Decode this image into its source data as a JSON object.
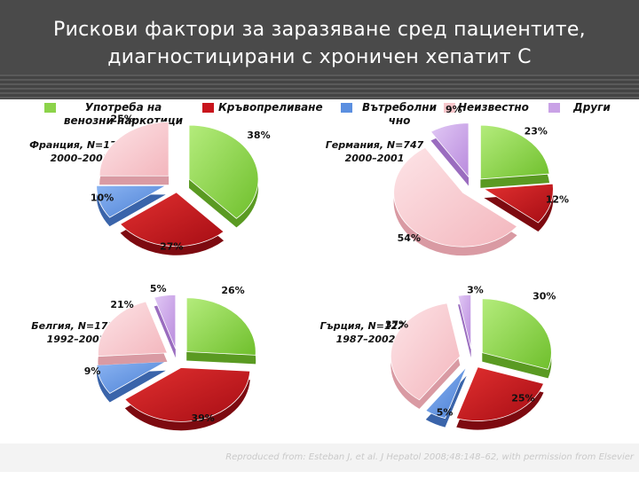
{
  "title_line1": "Рискови фактори за заразяване сред пациентите,",
  "title_line2": "диагностицирани с хроничен хепатит C",
  "legend": [
    {
      "label": "Употреба на венозни наркотици",
      "color": "#8cd34a"
    },
    {
      "label": "Кръвопреливане",
      "color": "#c8141c"
    },
    {
      "label": "Вътреболнично",
      "color": "#5b8fe0"
    },
    {
      "label": "Неизвестно",
      "color": "#f7c6cb"
    },
    {
      "label": "Други",
      "color": "#c9a2e6"
    }
  ],
  "legend_text": {
    "idu_1": "Употреба на",
    "idu_2": "венозни наркотици",
    "transfusion": "Кръвопреливане",
    "nosocomial_1": "Вътреболни",
    "nosocomial_2": "чно",
    "unknown": "Неизвестно",
    "other": "Други"
  },
  "chart_data": [
    {
      "type": "pie",
      "label_1": "Франция, N=1769",
      "label_2": "2000–2001",
      "categories": [
        "Употреба на венозни наркотици",
        "Кръвопреливане",
        "Вътреболнично",
        "Неизвестно"
      ],
      "values": [
        38,
        27,
        10,
        25
      ],
      "value_labels": [
        "38%",
        "27%",
        "10%",
        "25%"
      ]
    },
    {
      "type": "pie",
      "label_1": "Германия, N=747",
      "label_2": "2000–2001",
      "categories": [
        "Употреба на венозни наркотици",
        "Кръвопреливане",
        "Неизвестно",
        "Други"
      ],
      "values": [
        23,
        12,
        54,
        9
      ],
      "value_labels": [
        "23%",
        "12%",
        "54%",
        "9%"
      ]
    },
    {
      "type": "pie",
      "label_1": "Белгия, N=1726",
      "label_2": "1992–2002",
      "categories": [
        "Употреба на венозни наркотици",
        "Кръвопреливане",
        "Вътреболнично",
        "Неизвестно",
        "Други"
      ],
      "values": [
        26,
        39,
        9,
        21,
        5
      ],
      "value_labels": [
        "26%",
        "39%",
        "9%",
        "21%",
        "5%"
      ]
    },
    {
      "type": "pie",
      "label_1": "Гърция, N=1229",
      "label_2": "1987–2002",
      "categories": [
        "Употреба на венозни наркотици",
        "Кръвопреливане",
        "Вътреболнично",
        "Неизвестно",
        "Други"
      ],
      "values": [
        30,
        25,
        5,
        37,
        3
      ],
      "value_labels": [
        "30%",
        "25%",
        "5%",
        "37%",
        "3%"
      ]
    }
  ],
  "footer": "Reproduced from: Esteban J, et al. J Hepatol 2008;48:148–62, with permission from Elsevier"
}
